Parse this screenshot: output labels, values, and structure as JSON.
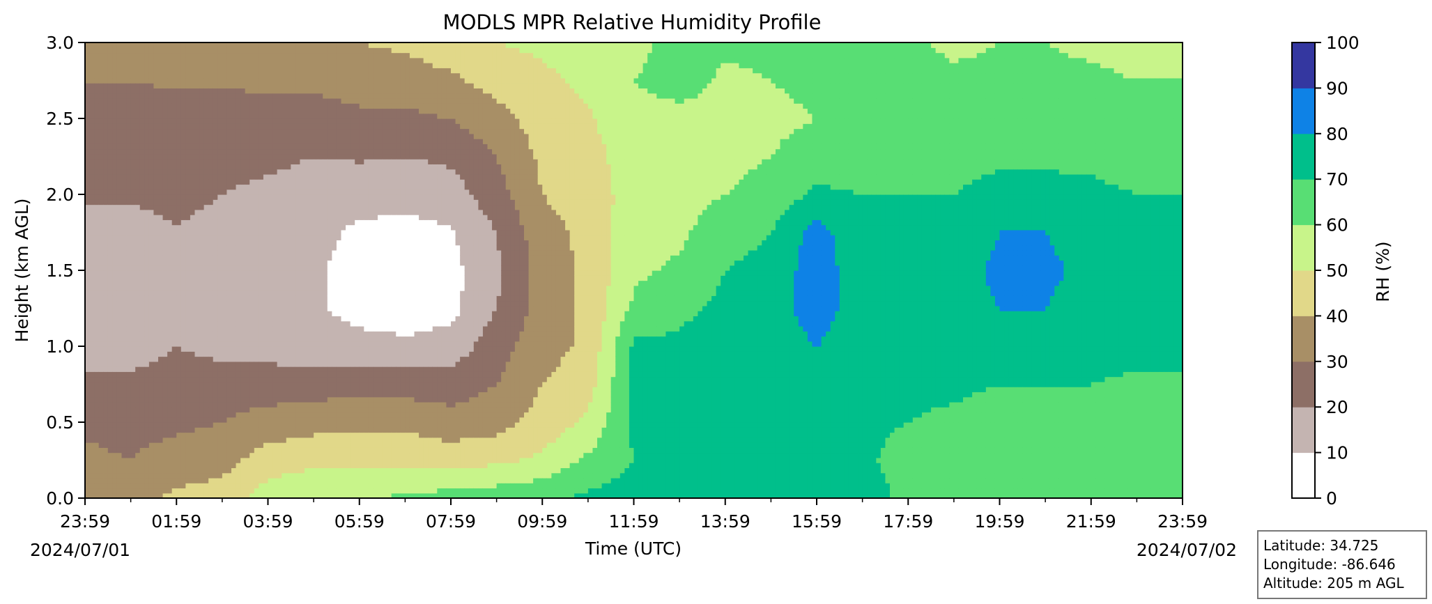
{
  "chart_data": {
    "type": "heatmap",
    "title": "MODLS MPR Relative Humidity Profile",
    "xlabel": "Time (UTC)",
    "ylabel": "Height (km AGL)",
    "x_ticks": [
      "23:59",
      "01:59",
      "03:59",
      "05:59",
      "07:59",
      "09:59",
      "11:59",
      "13:59",
      "15:59",
      "17:59",
      "19:59",
      "21:59",
      "23:59"
    ],
    "x_start_date": "2024/07/01",
    "x_end_date": "2024/07/02",
    "y_ticks": [
      "0.0",
      "0.5",
      "1.0",
      "1.5",
      "2.0",
      "2.5",
      "3.0"
    ],
    "ylim": [
      0,
      3.0
    ],
    "colorbar": {
      "label": "RH (%)",
      "ticks": [
        "0",
        "10",
        "20",
        "30",
        "40",
        "50",
        "60",
        "70",
        "80",
        "90",
        "100"
      ],
      "levels": [
        0,
        10,
        20,
        30,
        40,
        50,
        60,
        70,
        80,
        90,
        100
      ],
      "colors": [
        "#ffffff",
        "#c4b4b1",
        "#8d6f66",
        "#a88f66",
        "#e1d889",
        "#c8f48a",
        "#58de74",
        "#00bf8b",
        "#0e82e6",
        "#3437a0"
      ]
    },
    "grid": false,
    "rh_field_hours": [
      0,
      1,
      2,
      3,
      4,
      5,
      6,
      7,
      8,
      9,
      10,
      11,
      12,
      13,
      14,
      15,
      16,
      17,
      18,
      19,
      20,
      21,
      22,
      23,
      24
    ],
    "rh_field_heights_km": [
      0.0,
      0.25,
      0.5,
      0.75,
      1.0,
      1.25,
      1.5,
      1.75,
      2.0,
      2.25,
      2.5,
      2.75,
      3.0
    ],
    "rh_field": [
      [
        38,
        32,
        28,
        22,
        15,
        12,
        12,
        14,
        22,
        24,
        26,
        30,
        34
      ],
      [
        36,
        30,
        27,
        22,
        16,
        13,
        12,
        14,
        22,
        25,
        26,
        30,
        34
      ],
      [
        42,
        34,
        28,
        24,
        20,
        17,
        17,
        19,
        24,
        25,
        27,
        31,
        35
      ],
      [
        45,
        36,
        30,
        25,
        17,
        13,
        13,
        15,
        20,
        23,
        26,
        31,
        36
      ],
      [
        55,
        45,
        34,
        25,
        16,
        12,
        12,
        14,
        18,
        22,
        26,
        32,
        37
      ],
      [
        58,
        48,
        36,
        25,
        14,
        11,
        11,
        13,
        16,
        20,
        26,
        32,
        38
      ],
      [
        58,
        48,
        38,
        27,
        13,
        7,
        7,
        8,
        14,
        21,
        28,
        34,
        40
      ],
      [
        62,
        48,
        37,
        26,
        12,
        5,
        5,
        7,
        13,
        20,
        28,
        35,
        42
      ],
      [
        64,
        46,
        34,
        25,
        14,
        7,
        7,
        9,
        15,
        22,
        30,
        38,
        46
      ],
      [
        66,
        48,
        36,
        30,
        26,
        20,
        18,
        20,
        26,
        30,
        36,
        44,
        50
      ],
      [
        68,
        52,
        44,
        40,
        36,
        34,
        34,
        36,
        40,
        42,
        45,
        48,
        52
      ],
      [
        72,
        62,
        52,
        46,
        42,
        42,
        42,
        43,
        45,
        47,
        49,
        52,
        54
      ],
      [
        75,
        70,
        72,
        72,
        72,
        62,
        58,
        56,
        54,
        54,
        56,
        60,
        56
      ],
      [
        75,
        72,
        72,
        72,
        72,
        68,
        62,
        58,
        56,
        55,
        56,
        65,
        66
      ],
      [
        75,
        73,
        73,
        73,
        73,
        72,
        70,
        66,
        60,
        57,
        57,
        58,
        62
      ],
      [
        74,
        72,
        72,
        72,
        73,
        74,
        73,
        70,
        64,
        60,
        58,
        60,
        62
      ],
      [
        74,
        72,
        72,
        74,
        80,
        86,
        86,
        84,
        72,
        64,
        60,
        62,
        64
      ],
      [
        74,
        72,
        72,
        72,
        73,
        73,
        73,
        72,
        70,
        64,
        62,
        62,
        66
      ],
      [
        68,
        66,
        70,
        72,
        72,
        72,
        72,
        72,
        70,
        68,
        64,
        62,
        62
      ],
      [
        66,
        64,
        68,
        72,
        73,
        74,
        74,
        72,
        70,
        68,
        64,
        62,
        58
      ],
      [
        64,
        62,
        65,
        70,
        72,
        80,
        83,
        80,
        72,
        69,
        64,
        62,
        60
      ],
      [
        64,
        62,
        65,
        70,
        72,
        80,
        83,
        80,
        72,
        69,
        64,
        62,
        60
      ],
      [
        63,
        62,
        65,
        70,
        72,
        74,
        76,
        74,
        72,
        68,
        64,
        62,
        58
      ],
      [
        62,
        62,
        64,
        69,
        72,
        72,
        73,
        72,
        70,
        66,
        63,
        60,
        56
      ],
      [
        62,
        62,
        64,
        69,
        72,
        72,
        72,
        72,
        70,
        66,
        63,
        60,
        56
      ]
    ]
  },
  "info_box": {
    "latitude": "Latitude: 34.725",
    "longitude": "Longitude: -86.646",
    "altitude": "Altitude: 205 m AGL"
  }
}
